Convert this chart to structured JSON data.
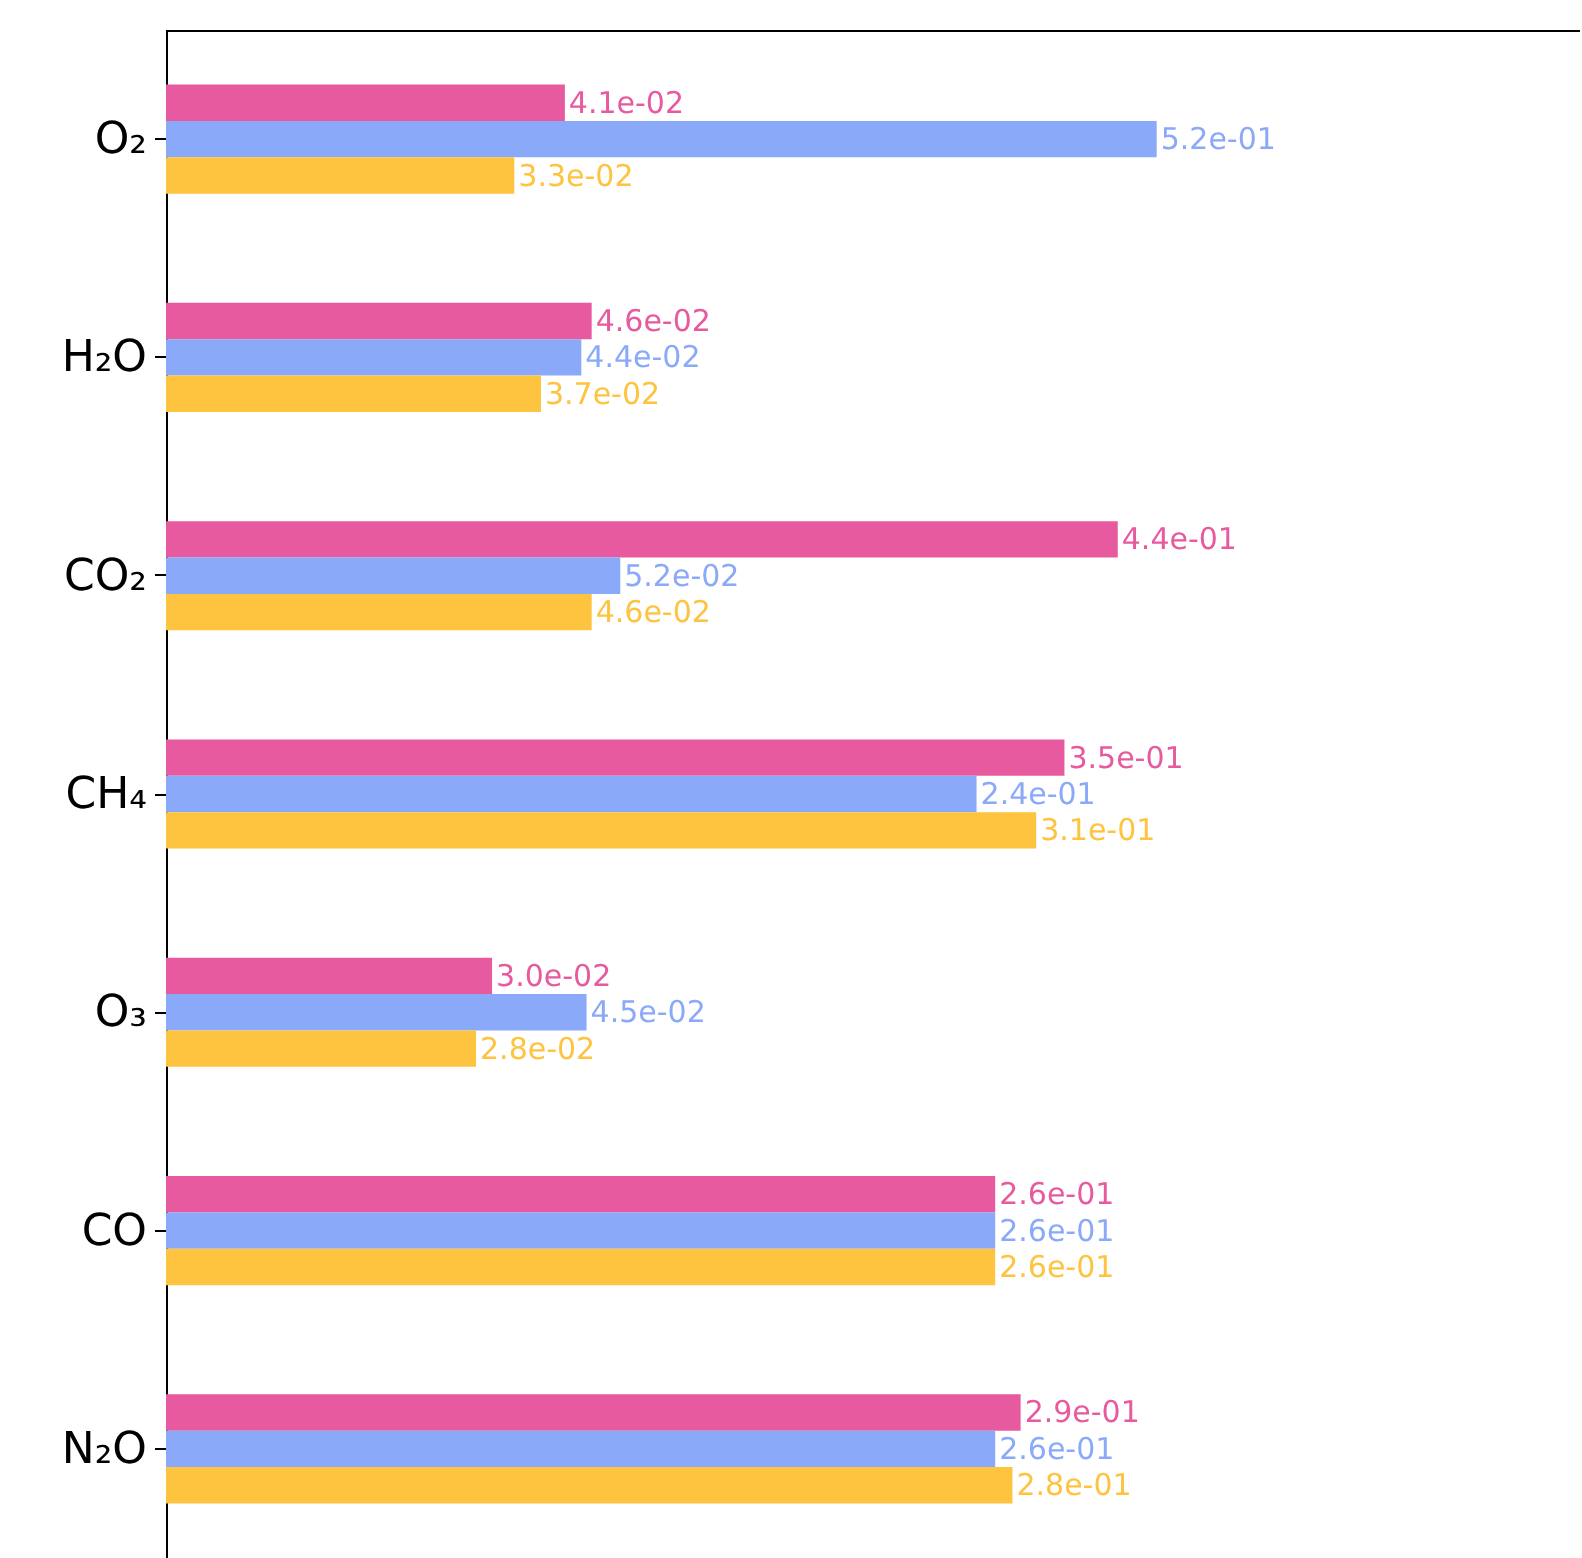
{
  "chart_data": {
    "type": "bar",
    "orientation": "horizontal",
    "log": "x",
    "xlim": [
      0.0074,
      3.2
    ],
    "tick_labels": "y",
    "categories": [
      "O₂",
      "H₂O",
      "CO₂",
      "CH₄",
      "O₃",
      "CO",
      "N₂O"
    ],
    "series": [
      {
        "color": "#e75a9f",
        "values": [
          0.041,
          0.046,
          0.44,
          0.35,
          0.03,
          0.26,
          0.29
        ],
        "value_labels": [
          "4.1e-02",
          "4.6e-02",
          "4.4e-01",
          "3.5e-01",
          "3.0e-02",
          "2.6e-01",
          "2.9e-01"
        ]
      },
      {
        "color": "#8aa9f8",
        "values": [
          0.52,
          0.044,
          0.052,
          0.24,
          0.045,
          0.26,
          0.26
        ],
        "value_labels": [
          "5.2e-01",
          "4.4e-02",
          "5.2e-02",
          "2.4e-01",
          "4.5e-02",
          "2.6e-01",
          "2.6e-01"
        ]
      },
      {
        "color": "#fec33f",
        "values": [
          0.033,
          0.037,
          0.046,
          0.31,
          0.028,
          0.26,
          0.28
        ],
        "value_labels": [
          "3.3e-02",
          "3.7e-02",
          "4.6e-02",
          "3.1e-01",
          "2.8e-02",
          "2.6e-01",
          "2.8e-01"
        ]
      }
    ]
  }
}
